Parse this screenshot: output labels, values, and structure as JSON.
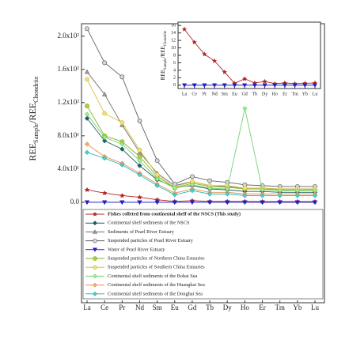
{
  "chart_data": [
    {
      "type": "line",
      "categories": [
        "La",
        "Ce",
        "Pr",
        "Nd",
        "Sm",
        "Eu",
        "Gd",
        "Tb",
        "Dy",
        "Ho",
        "Er",
        "Tm",
        "Yb",
        "Lu"
      ],
      "ylabel_parts": [
        "REE",
        "Sample",
        "/REE",
        "Chondrite"
      ],
      "ylim": [
        -121,
        215
      ],
      "yticks": [
        {
          "value": 0,
          "label": "0.0"
        },
        {
          "value": 40,
          "label": "4.0x10¹"
        },
        {
          "value": 80,
          "label": "8.0x10¹"
        },
        {
          "value": 120,
          "label": "1.2x10²"
        },
        {
          "value": 160,
          "label": "1.6x10²"
        },
        {
          "value": 200,
          "label": "2.0x10²"
        }
      ],
      "series": [
        {
          "name": "Fishes colleted from continental shelf of the  NSCS (This study)",
          "color": "#b22222",
          "fill": "#b22222",
          "marker": "star",
          "values": [
            15,
            11,
            8,
            6,
            3,
            1,
            2,
            1,
            1,
            1,
            0.8,
            0.8,
            0.8,
            0.8
          ]
        },
        {
          "name": "Continental shelf sediments of the NSCS",
          "color": "#1f5f5f",
          "fill": "#1f5f5f",
          "marker": "diamond",
          "values": [
            101,
            74,
            64,
            44,
            27,
            18,
            20,
            16,
            15,
            13,
            13,
            12,
            12,
            12
          ]
        },
        {
          "name": "Sediments of Pearl River Estuary",
          "color": "#707070",
          "fill": "#a0a0a0",
          "marker": "triangle",
          "values": [
            157,
            130,
            93,
            60,
            35,
            20,
            25,
            20,
            19,
            17,
            17,
            16,
            16,
            16
          ]
        },
        {
          "name": "Suspended particles of Pearl River Estuary",
          "color": "#606060",
          "fill": "#d8d8d8",
          "marker": "circle",
          "values": [
            209,
            168,
            151,
            98,
            50,
            22,
            31,
            26,
            24,
            21,
            20,
            19,
            19,
            19
          ]
        },
        {
          "name": "Water of Pearl River Estuary",
          "color": "#2020c0",
          "fill": "#2020c0",
          "marker": "down",
          "values": [
            0,
            0,
            0,
            0,
            0,
            0,
            0,
            0,
            0,
            0,
            0,
            0,
            0,
            0
          ]
        },
        {
          "name": "Suspended particles of Northern China Estuaries",
          "color": "#8ab020",
          "fill": "#a8d040",
          "marker": "circle",
          "values": [
            116,
            80,
            73,
            55,
            31,
            17,
            23,
            19,
            18,
            16,
            16,
            15,
            15,
            15
          ]
        },
        {
          "name": "Suspended particles of Southern China Estuaries",
          "color": "#d8c040",
          "fill": "#f0e080",
          "marker": "circle",
          "values": [
            148,
            107,
            96,
            63,
            33,
            18,
            25,
            20,
            20,
            17,
            17,
            16,
            16,
            16
          ]
        },
        {
          "name": "Continental shelf sediments of the Bohai Sea",
          "color": "#70d070",
          "fill": "#a0f0a0",
          "marker": "diamond",
          "values": [
            106,
            78,
            70,
            50,
            28,
            17,
            21,
            17,
            16,
            113,
            15,
            14,
            14,
            14
          ]
        },
        {
          "name": "Continental shelf sediments of the Huanghai Sea",
          "color": "#e09050",
          "fill": "#f4b070",
          "marker": "diamond",
          "values": [
            70,
            55,
            47,
            35,
            22,
            11,
            16,
            12,
            12,
            10,
            10,
            10,
            10,
            10
          ]
        },
        {
          "name": "Continental shelf sediments of the Donghai Sea",
          "color": "#30b0b0",
          "fill": "#50d0d0",
          "marker": "diamond",
          "values": [
            60,
            53,
            45,
            33,
            20,
            9,
            14,
            10,
            10,
            8,
            8,
            8,
            8,
            8
          ]
        }
      ]
    },
    {
      "type": "line",
      "categories": [
        "La",
        "Ce",
        "Pr",
        "Nd",
        "Sm",
        "Eu",
        "Gd",
        "Tb",
        "Dy",
        "Ho",
        "Er",
        "Tm",
        "Yb",
        "Lu"
      ],
      "ylabel_parts": [
        "REE",
        "Sample",
        "/REE",
        "Chondrite"
      ],
      "ylim": [
        -0.9,
        16.9
      ],
      "yticks": [
        0,
        2,
        4,
        6,
        8,
        10,
        12,
        14,
        16
      ],
      "series": [
        {
          "color": "#b22222",
          "fill": "#b22222",
          "marker": "star",
          "values": [
            15,
            11.5,
            8.3,
            6.5,
            3.5,
            0.5,
            1.7,
            0.6,
            1,
            0.4,
            0.6,
            0.4,
            0.5,
            0.6
          ]
        },
        {
          "color": "#2020c0",
          "fill": "#2020c0",
          "marker": "down",
          "values": [
            0,
            0,
            0,
            0,
            0,
            0,
            0,
            0,
            0,
            0,
            0,
            0,
            0,
            0
          ]
        }
      ]
    }
  ]
}
